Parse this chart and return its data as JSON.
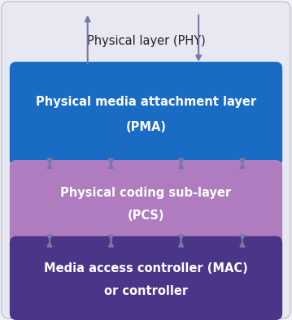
{
  "bg_color": "#f0f0f8",
  "outer_face": "#e8e8f2",
  "outer_edge": "#c8c8d8",
  "pma_color": "#1a6bc4",
  "pcs_color": "#b07cc0",
  "mac_color": "#4a3588",
  "white": "#ffffff",
  "dark_text": "#222222",
  "arrow_color": "#7878a0",
  "phy_label": "Physical layer (PHY)",
  "pma_line1": "Physical media attachment layer",
  "pma_line2": "(PMA)",
  "pcs_line1": "Physical coding sub-layer",
  "pcs_line2": "(PCS)",
  "mac_line1": "Media access controller (MAC)",
  "mac_line2": "or controller",
  "fig_w": 3.59,
  "fig_h": 3.94,
  "dpi": 100
}
